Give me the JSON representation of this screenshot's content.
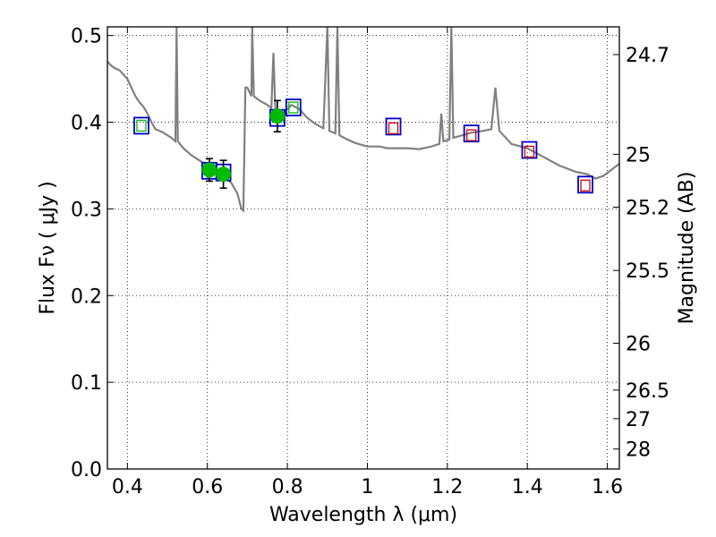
{
  "chart_data": {
    "type": "scatter",
    "xlabel": "Wavelength  λ (μm)",
    "ylabel": "Flux  Fν  ( μJy )",
    "ylabel_right": "Magnitude (AB)",
    "xlim": [
      0.35,
      1.63
    ],
    "ylim": [
      0.0,
      0.51
    ],
    "grid": true,
    "x_ticks": [
      0.4,
      0.6,
      0.8,
      1.0,
      1.2,
      1.4,
      1.6
    ],
    "x_tick_labels": [
      "0.4",
      "0.6",
      "0.8",
      "1",
      "1.2",
      "1.4",
      "1.6"
    ],
    "y_ticks": [
      0.0,
      0.1,
      0.2,
      0.3,
      0.4,
      0.5
    ],
    "y_tick_labels": [
      "0.0",
      "0.1",
      "0.2",
      "0.3",
      "0.4",
      "0.5"
    ],
    "right_ticks": [
      {
        "mag": "24.7",
        "flux": 0.478
      },
      {
        "mag": "25",
        "flux": 0.363
      },
      {
        "mag": "25.2",
        "flux": 0.302
      },
      {
        "mag": "25.5",
        "flux": 0.229
      },
      {
        "mag": "26",
        "flux": 0.145
      },
      {
        "mag": "26.5",
        "flux": 0.091
      },
      {
        "mag": "27",
        "flux": 0.058
      },
      {
        "mag": "28",
        "flux": 0.023
      }
    ],
    "series": [
      {
        "kind": "sed-model-spectrum",
        "color": "#808080",
        "points": [
          [
            0.35,
            0.47
          ],
          [
            0.36,
            0.465
          ],
          [
            0.37,
            0.462
          ],
          [
            0.38,
            0.46
          ],
          [
            0.39,
            0.455
          ],
          [
            0.4,
            0.45
          ],
          [
            0.41,
            0.44
          ],
          [
            0.42,
            0.43
          ],
          [
            0.43,
            0.423
          ],
          [
            0.44,
            0.418
          ],
          [
            0.45,
            0.41
          ],
          [
            0.46,
            0.4
          ],
          [
            0.47,
            0.392
          ],
          [
            0.48,
            0.39
          ],
          [
            0.49,
            0.388
          ],
          [
            0.5,
            0.385
          ],
          [
            0.51,
            0.382
          ],
          [
            0.52,
            0.378
          ],
          [
            0.523,
            0.51
          ],
          [
            0.526,
            0.378
          ],
          [
            0.54,
            0.37
          ],
          [
            0.56,
            0.362
          ],
          [
            0.58,
            0.356
          ],
          [
            0.6,
            0.35
          ],
          [
            0.62,
            0.343
          ],
          [
            0.64,
            0.338
          ],
          [
            0.66,
            0.33
          ],
          [
            0.675,
            0.318
          ],
          [
            0.685,
            0.3
          ],
          [
            0.69,
            0.298
          ],
          [
            0.695,
            0.44
          ],
          [
            0.7,
            0.44
          ],
          [
            0.71,
            0.43
          ],
          [
            0.712,
            0.51
          ],
          [
            0.716,
            0.43
          ],
          [
            0.73,
            0.425
          ],
          [
            0.75,
            0.42
          ],
          [
            0.76,
            0.416
          ],
          [
            0.765,
            0.48
          ],
          [
            0.77,
            0.412
          ],
          [
            0.79,
            0.41
          ],
          [
            0.81,
            0.42
          ],
          [
            0.83,
            0.415
          ],
          [
            0.85,
            0.405
          ],
          [
            0.87,
            0.398
          ],
          [
            0.89,
            0.393
          ],
          [
            0.9,
            0.51
          ],
          [
            0.905,
            0.39
          ],
          [
            0.92,
            0.387
          ],
          [
            0.925,
            0.51
          ],
          [
            0.93,
            0.385
          ],
          [
            0.95,
            0.38
          ],
          [
            0.97,
            0.376
          ],
          [
            1.0,
            0.372
          ],
          [
            1.03,
            0.372
          ],
          [
            1.05,
            0.37
          ],
          [
            1.08,
            0.37
          ],
          [
            1.1,
            0.37
          ],
          [
            1.13,
            0.369
          ],
          [
            1.16,
            0.372
          ],
          [
            1.18,
            0.375
          ],
          [
            1.185,
            0.41
          ],
          [
            1.19,
            0.378
          ],
          [
            1.205,
            0.38
          ],
          [
            1.21,
            0.51
          ],
          [
            1.215,
            0.382
          ],
          [
            1.23,
            0.384
          ],
          [
            1.26,
            0.388
          ],
          [
            1.29,
            0.39
          ],
          [
            1.31,
            0.392
          ],
          [
            1.32,
            0.44
          ],
          [
            1.33,
            0.39
          ],
          [
            1.36,
            0.375
          ],
          [
            1.4,
            0.37
          ],
          [
            1.44,
            0.36
          ],
          [
            1.48,
            0.35
          ],
          [
            1.52,
            0.343
          ],
          [
            1.55,
            0.34
          ],
          [
            1.57,
            0.335
          ],
          [
            1.59,
            0.338
          ],
          [
            1.61,
            0.345
          ],
          [
            1.63,
            0.352
          ]
        ]
      },
      {
        "kind": "observed-photometry",
        "color": "#00bb00",
        "marker": "circle",
        "points": [
          {
            "x": 0.605,
            "y": 0.345,
            "yerr": 0.013
          },
          {
            "x": 0.64,
            "y": 0.34,
            "yerr": 0.016
          },
          {
            "x": 0.775,
            "y": 0.407,
            "yerr": 0.018
          }
        ]
      },
      {
        "kind": "model-band-fluxes",
        "color": "#0000cc",
        "marker": "square",
        "points": [
          {
            "x": 0.435,
            "y": 0.396
          },
          {
            "x": 0.605,
            "y": 0.344
          },
          {
            "x": 0.64,
            "y": 0.342
          },
          {
            "x": 0.775,
            "y": 0.405
          },
          {
            "x": 0.815,
            "y": 0.417
          },
          {
            "x": 1.065,
            "y": 0.395
          },
          {
            "x": 1.26,
            "y": 0.387
          },
          {
            "x": 1.405,
            "y": 0.368
          },
          {
            "x": 1.545,
            "y": 0.328
          }
        ]
      },
      {
        "kind": "upper-limit-markers",
        "color": "#00bb00",
        "marker": "open-square",
        "points": [
          {
            "x": 0.435,
            "y": 0.396
          },
          {
            "x": 0.815,
            "y": 0.417
          }
        ]
      },
      {
        "kind": "nonconstraining-markers",
        "color": "#cc0000",
        "marker": "open-square",
        "points": [
          {
            "x": 1.065,
            "y": 0.393
          },
          {
            "x": 1.26,
            "y": 0.385
          },
          {
            "x": 1.405,
            "y": 0.366
          },
          {
            "x": 1.545,
            "y": 0.327
          }
        ]
      }
    ]
  }
}
